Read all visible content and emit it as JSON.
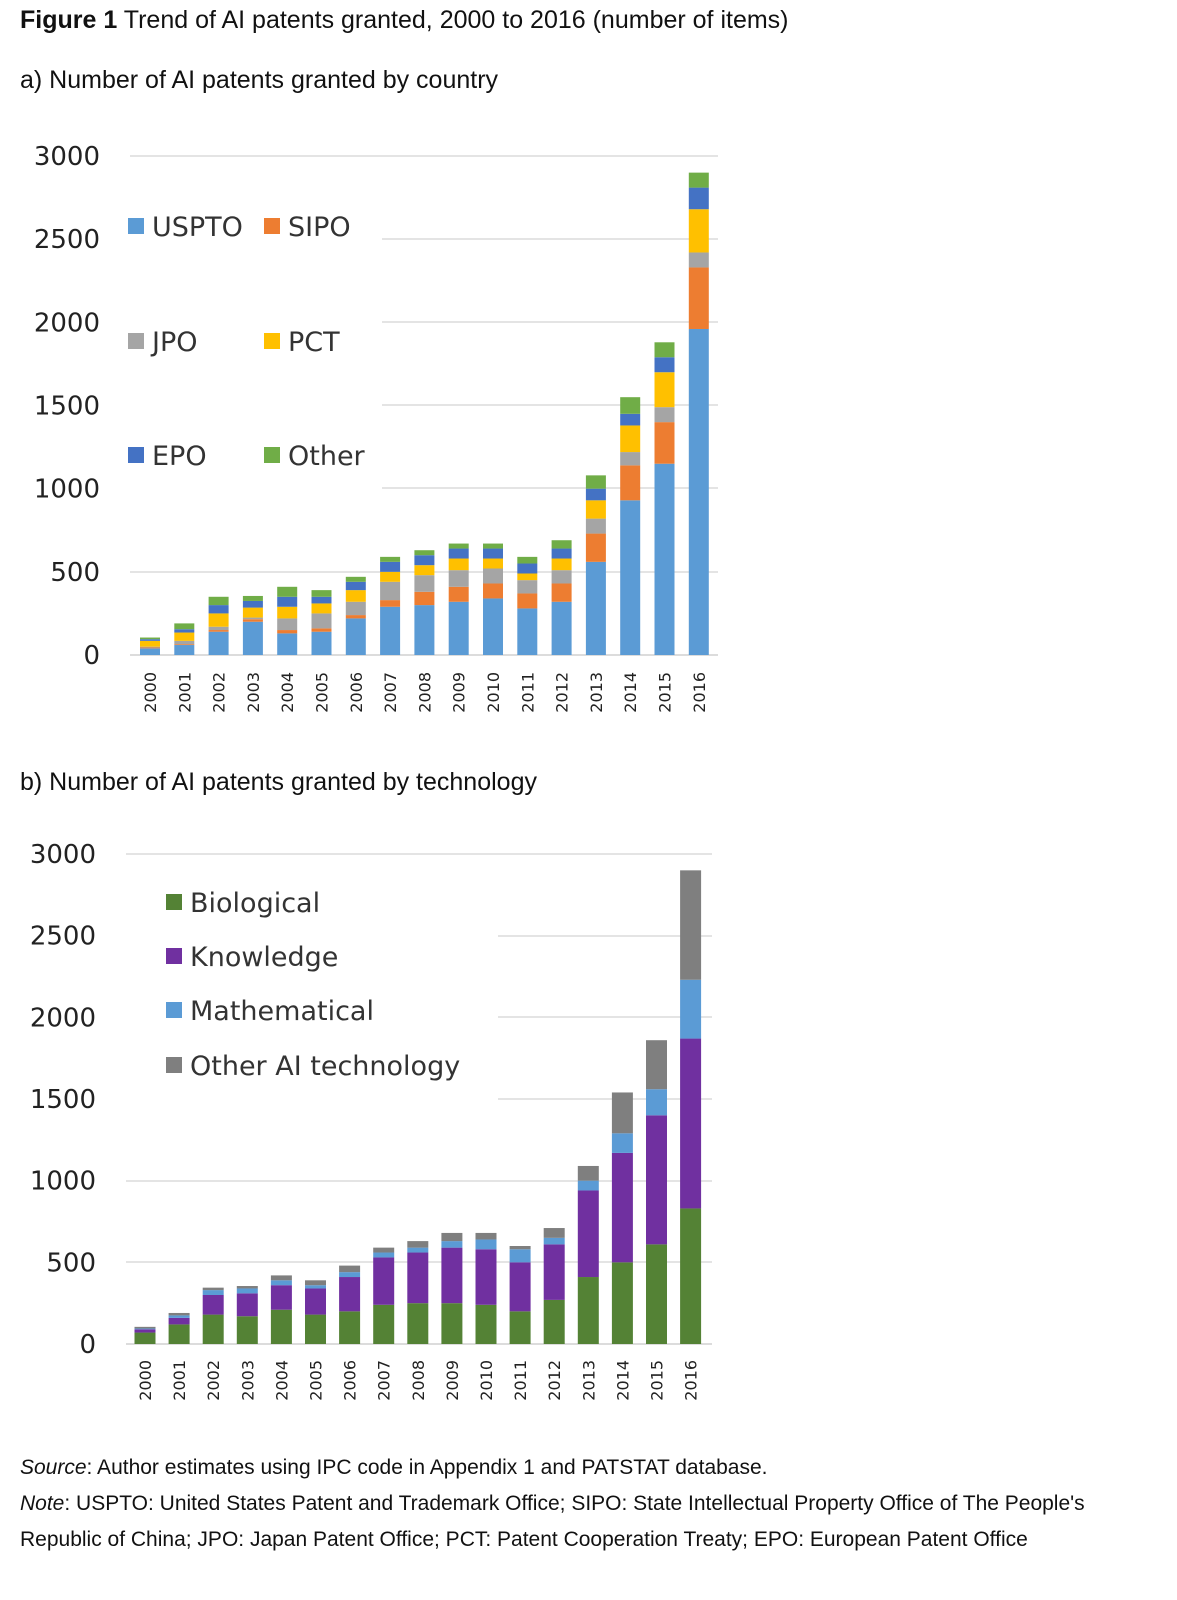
{
  "figure": {
    "label": "Figure 1",
    "title": "Trend of AI patents granted, 2000 to 2016 (number of items)"
  },
  "chart_data": [
    {
      "type": "bar",
      "stacked": true,
      "title": "a) Number of AI patents granted by country",
      "xlabel": "",
      "ylabel": "",
      "ylim": [
        0,
        3000
      ],
      "yticks": [
        0,
        500,
        1000,
        1500,
        2000,
        2500,
        3000
      ],
      "grid": true,
      "legend": "upper-left inside, 2 columns",
      "categories": [
        "2000",
        "2001",
        "2002",
        "2003",
        "2004",
        "2005",
        "2006",
        "2007",
        "2008",
        "2009",
        "2010",
        "2011",
        "2012",
        "2013",
        "2014",
        "2015",
        "2016"
      ],
      "series": [
        {
          "name": "USPTO",
          "color": "#5b9bd5",
          "values": [
            40,
            60,
            140,
            200,
            130,
            140,
            220,
            290,
            300,
            320,
            340,
            280,
            320,
            560,
            930,
            1150,
            1960
          ]
        },
        {
          "name": "SIPO",
          "color": "#ed7d31",
          "values": [
            5,
            5,
            10,
            15,
            20,
            20,
            20,
            40,
            80,
            90,
            90,
            90,
            110,
            170,
            210,
            250,
            370
          ]
        },
        {
          "name": "JPO",
          "color": "#a5a5a5",
          "values": [
            5,
            20,
            20,
            10,
            70,
            90,
            80,
            110,
            100,
            100,
            90,
            80,
            80,
            90,
            80,
            90,
            90
          ]
        },
        {
          "name": "PCT",
          "color": "#ffc000",
          "values": [
            35,
            50,
            80,
            60,
            70,
            60,
            70,
            60,
            60,
            70,
            60,
            40,
            70,
            110,
            160,
            210,
            260
          ]
        },
        {
          "name": "EPO",
          "color": "#4472c4",
          "values": [
            10,
            20,
            50,
            40,
            60,
            40,
            50,
            60,
            60,
            60,
            60,
            60,
            60,
            70,
            70,
            90,
            130
          ]
        },
        {
          "name": "Other",
          "color": "#70ad47",
          "values": [
            10,
            35,
            50,
            30,
            60,
            40,
            30,
            30,
            30,
            30,
            30,
            40,
            50,
            80,
            100,
            90,
            90
          ]
        }
      ]
    },
    {
      "type": "bar",
      "stacked": true,
      "title": "b) Number of AI patents granted by technology",
      "xlabel": "",
      "ylabel": "",
      "ylim": [
        0,
        3000
      ],
      "yticks": [
        0,
        500,
        1000,
        1500,
        2000,
        2500,
        3000
      ],
      "grid": true,
      "legend": "upper-left inside, 1 column",
      "categories": [
        "2000",
        "2001",
        "2002",
        "2003",
        "2004",
        "2005",
        "2006",
        "2007",
        "2008",
        "2009",
        "2010",
        "2011",
        "2012",
        "2013",
        "2014",
        "2015",
        "2016"
      ],
      "series": [
        {
          "name": "Biological",
          "color": "#548235",
          "values": [
            70,
            120,
            180,
            170,
            210,
            180,
            200,
            240,
            250,
            250,
            240,
            200,
            270,
            410,
            500,
            610,
            830
          ]
        },
        {
          "name": "Knowledge",
          "color": "#7030a0",
          "values": [
            20,
            40,
            120,
            140,
            150,
            160,
            210,
            290,
            310,
            340,
            340,
            300,
            340,
            530,
            670,
            790,
            1040
          ]
        },
        {
          "name": "Mathematical",
          "color": "#5b9bd5",
          "values": [
            5,
            15,
            30,
            30,
            30,
            20,
            30,
            30,
            30,
            40,
            60,
            80,
            40,
            60,
            120,
            160,
            360
          ]
        },
        {
          "name": "Other AI technology",
          "color": "#7f7f7f",
          "values": [
            10,
            15,
            15,
            15,
            30,
            30,
            40,
            30,
            40,
            50,
            40,
            20,
            60,
            90,
            250,
            300,
            670
          ]
        }
      ]
    }
  ],
  "notes": {
    "source_label": "Source",
    "source_text": ": Author estimates using IPC code in Appendix 1 and PATSTAT database.",
    "note_label": "Note",
    "note_text": ": USPTO: United States Patent and Trademark Office; SIPO: State Intellectual Property Office of The People's Republic of China; JPO: Japan Patent Office; PCT: Patent Cooperation Treaty; EPO: European Patent Office"
  }
}
